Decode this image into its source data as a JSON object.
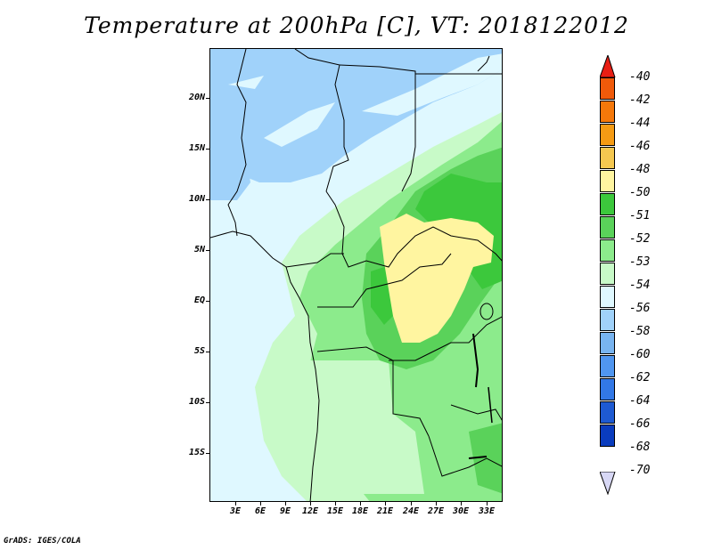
{
  "title": "Temperature at 200hPa [C], VT: 2018122012",
  "footer": "GrADS: IGES/COLA",
  "lat_labels": [
    "20N",
    "15N",
    "10N",
    "5N",
    "EQ",
    "5S",
    "10S",
    "15S"
  ],
  "lon_labels": [
    "3E",
    "6E",
    "9E",
    "12E",
    "15E",
    "18E",
    "21E",
    "24E",
    "27E",
    "30E",
    "33E"
  ],
  "colorbar": {
    "labels": [
      "-40",
      "-42",
      "-44",
      "-46",
      "-48",
      "-50",
      "-51",
      "-52",
      "-53",
      "-54",
      "-56",
      "-58",
      "-60",
      "-62",
      "-64",
      "-66",
      "-68",
      "-70"
    ],
    "colors": [
      "#f5000f",
      "#f05a0a",
      "#f5780a",
      "#f59b14",
      "#f5c850",
      "#fff5a0",
      "#3cc83c",
      "#5ad25a",
      "#8ceb8c",
      "#c8fac8",
      "#dff8ff",
      "#a0d2fa",
      "#78b4f0",
      "#5096f0",
      "#3278e6",
      "#1e5ad2",
      "#0a3cbe",
      "#0a0a78"
    ],
    "top_arrow_color": "#e81e14",
    "bottom_arrow_color": "#d8d8f5"
  },
  "fill_colors": {
    "blue_light": "#a0d2fa",
    "cyan_pale": "#dff8ff",
    "green_pale": "#c8fac8",
    "green_light": "#8ceb8c",
    "green_mid": "#5ad25a",
    "green_dark": "#3cc83c",
    "yellow": "#fff5a0"
  }
}
